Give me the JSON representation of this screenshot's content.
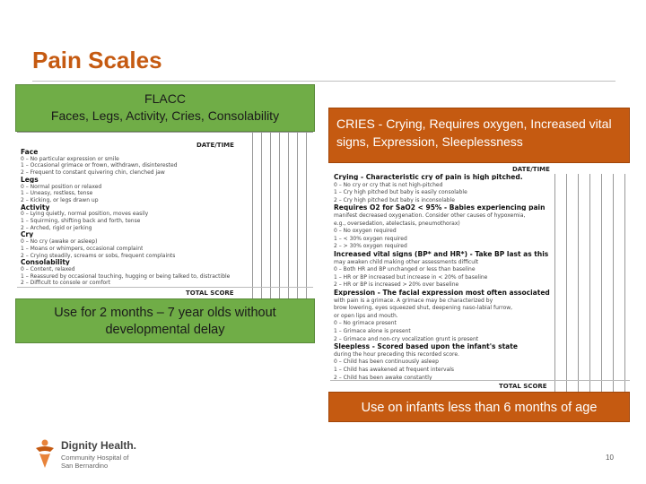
{
  "slide": {
    "title": "Pain Scales",
    "page_number": "10"
  },
  "flacc": {
    "header_line1": "FLACC",
    "header_line2": "Faces, Legs, Activity, Cries, Consolability",
    "note": "Use for 2 months – 7 year olds without developmental delay",
    "form": {
      "date_time_label": "DATE/TIME",
      "total_label": "TOTAL SCORE",
      "rows": [
        {
          "text": "Face",
          "heading": true
        },
        {
          "text": "0 – No particular expression or smile",
          "heading": false
        },
        {
          "text": "1 – Occasional grimace or frown, withdrawn, disinterested",
          "heading": false
        },
        {
          "text": "2 – Frequent to constant quivering chin, clenched jaw",
          "heading": false
        },
        {
          "text": "Legs",
          "heading": true
        },
        {
          "text": "0 – Normal position or relaxed",
          "heading": false
        },
        {
          "text": "1 – Uneasy, restless, tense",
          "heading": false
        },
        {
          "text": "2 – Kicking, or legs drawn up",
          "heading": false
        },
        {
          "text": "Activity",
          "heading": true
        },
        {
          "text": "0 – Lying quietly, normal position, moves easily",
          "heading": false
        },
        {
          "text": "1 – Squirming, shifting back and forth, tense",
          "heading": false
        },
        {
          "text": "2 – Arched, rigid or jerking",
          "heading": false
        },
        {
          "text": "Cry",
          "heading": true
        },
        {
          "text": "0 – No cry (awake or asleep)",
          "heading": false
        },
        {
          "text": "1 – Moans or whimpers, occasional complaint",
          "heading": false
        },
        {
          "text": "2 – Crying steadily, screams or sobs, frequent complaints",
          "heading": false
        },
        {
          "text": "Consolability",
          "heading": true
        },
        {
          "text": "0 – Content, relaxed",
          "heading": false
        },
        {
          "text": "1 – Reassured by occasional touching, hugging or being talked to, distractible",
          "heading": false
        },
        {
          "text": "2 – Difficult to console or comfort",
          "heading": false
        }
      ]
    }
  },
  "cries": {
    "header": "CRIES - Crying, Requires oxygen, Increased vital signs, Expression, Sleeplessness",
    "note": "Use on infants less than 6 months of age",
    "form": {
      "date_time_label": "DATE/TIME",
      "total_label": "TOTAL SCORE",
      "rows": [
        {
          "text": "Crying - Characteristic cry of pain is high pitched.",
          "heading": true
        },
        {
          "text": "0 – No cry or cry that is not high-pitched",
          "heading": false
        },
        {
          "text": "1 – Cry high pitched but baby is easily consolable",
          "heading": false
        },
        {
          "text": "2 – Cry high pitched but baby is inconsolable",
          "heading": false
        },
        {
          "text": "Requires O2 for SaO2 < 95% - Babies experiencing pain",
          "heading": true
        },
        {
          "text": "manifest decreased oxygenation. Consider other causes of hypoxemia,",
          "heading": false
        },
        {
          "text": "e.g., oversedation, atelectasis, pneumothorax)",
          "heading": false
        },
        {
          "text": "0 – No oxygen required",
          "heading": false
        },
        {
          "text": "1 – < 30% oxygen required",
          "heading": false
        },
        {
          "text": "2 – > 30% oxygen required",
          "heading": false
        },
        {
          "text": "Increased vital signs (BP* and HR*) - Take BP last as this",
          "heading": true
        },
        {
          "text": "may awaken child making other assessments difficult",
          "heading": false
        },
        {
          "text": "0 – Both HR and BP unchanged or less than baseline",
          "heading": false
        },
        {
          "text": "1 – HR or BP increased but increase in < 20% of baseline",
          "heading": false
        },
        {
          "text": "2 – HR or BP is increased > 20% over baseline",
          "heading": false
        },
        {
          "text": "Expression - The facial expression most often associated",
          "heading": true
        },
        {
          "text": "with pain is a grimace. A grimace may be characterized by",
          "heading": false
        },
        {
          "text": "brow lowering, eyes squeezed shut, deepening naso-labial furrow,",
          "heading": false
        },
        {
          "text": "or open lips and mouth.",
          "heading": false
        },
        {
          "text": "0 – No grimace present",
          "heading": false
        },
        {
          "text": "1 – Grimace alone is present",
          "heading": false
        },
        {
          "text": "2 – Grimace and non-cry vocalization grunt is present",
          "heading": false
        },
        {
          "text": "Sleepless - Scored based upon the infant's state",
          "heading": true
        },
        {
          "text": "during the hour preceding this recorded score.",
          "heading": false
        },
        {
          "text": "0 – Child has been continuously asleep",
          "heading": false
        },
        {
          "text": "1 – Child has awakened at frequent intervals",
          "heading": false
        },
        {
          "text": "2 – Child has been awake constantly",
          "heading": false
        }
      ]
    }
  },
  "logo": {
    "name": "Dignity Health.",
    "line1": "Community Hospital of",
    "line2": "San Bernardino"
  },
  "colors": {
    "title": "#c55a11",
    "green_box": "#70ad47",
    "orange_box": "#c55a11"
  }
}
